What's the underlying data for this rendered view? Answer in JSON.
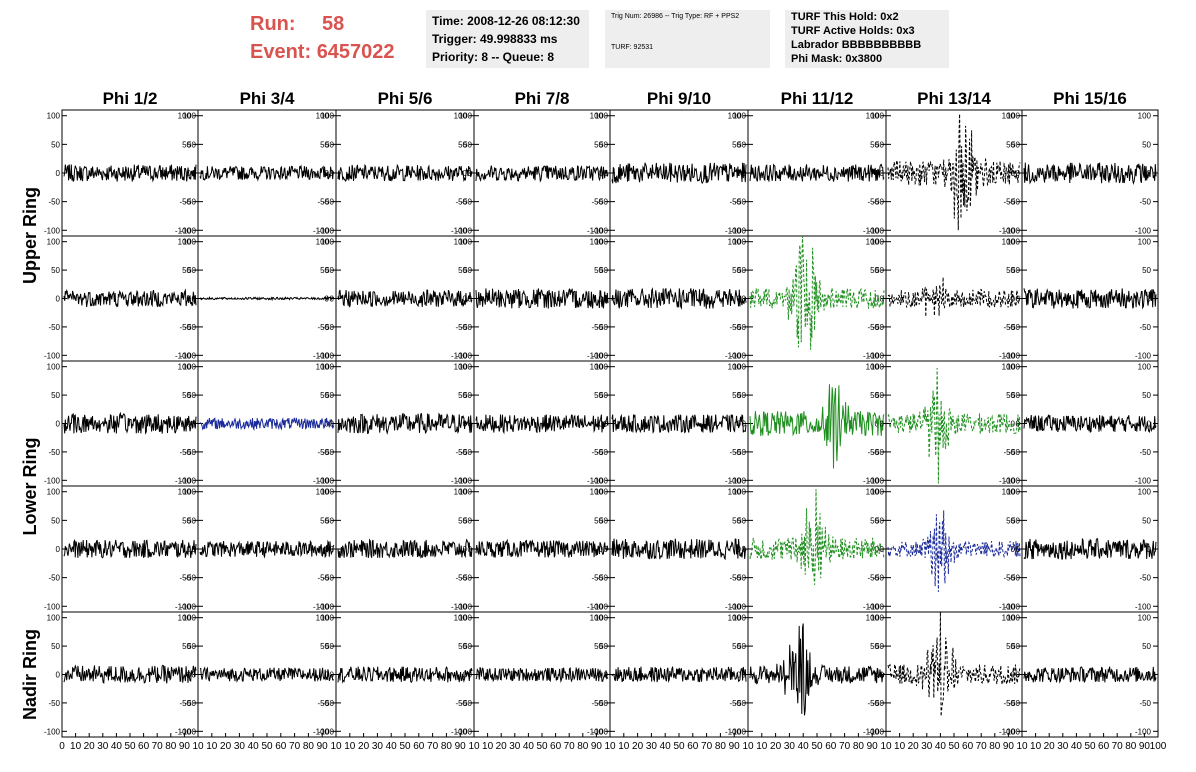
{
  "header": {
    "run_label": "Run:",
    "run_value": "58",
    "event_label": "Event:",
    "event_value": "6457022"
  },
  "info_time": {
    "time": "Time: 2008-12-26 08:12:30",
    "trigger": "Trigger: 49.998833 ms",
    "priority": "Priority: 8 -- Queue: 8"
  },
  "info_trig": {
    "trig": "Trig Num: 26986 -- Trig Type: RF + PPS2",
    "turf": "TURF: 92531"
  },
  "info_turf": {
    "hold": "TURF This Hold: 0x2",
    "active": "TURF Active Holds: 0x3",
    "labrador": "Labrador BBBBBBBBBB",
    "mask": "Phi Mask: 0x3800"
  },
  "colors": {
    "header_red": "#d9534f",
    "black": "#000000",
    "green": "#1f8f1f",
    "blue": "#1a2a9a",
    "panel_bg": "#eeeeee"
  },
  "chart_data": {
    "type": "line",
    "columns": [
      "Phi 1/2",
      "Phi 3/4",
      "Phi 5/6",
      "Phi 7/8",
      "Phi 9/10",
      "Phi 11/12",
      "Phi 13/14",
      "Phi 15/16"
    ],
    "ring_labels": [
      "Upper Ring",
      "Lower Ring",
      "Nadir Ring"
    ],
    "ring_rows": [
      [
        0,
        1
      ],
      [
        2,
        3
      ],
      [
        4,
        4
      ]
    ],
    "ylim": [
      -110,
      110
    ],
    "yticks": [
      100,
      50,
      0,
      -50,
      -100
    ],
    "xlim": [
      0,
      100
    ],
    "xtick_labels": [
      "0",
      "10",
      "20",
      "30",
      "40",
      "50",
      "60",
      "70",
      "80",
      "90",
      "10"
    ],
    "last_xtick_label": "100",
    "traces": [
      [
        {
          "color": "black",
          "style": "solid",
          "amp": 15,
          "burst": 0
        },
        {
          "color": "black",
          "style": "solid",
          "amp": 12,
          "burst": 0
        },
        {
          "color": "black",
          "style": "solid",
          "amp": 14,
          "burst": 0
        },
        {
          "color": "black",
          "style": "solid",
          "amp": 14,
          "burst": 0
        },
        {
          "color": "black",
          "style": "solid",
          "amp": 18,
          "burst": 0
        },
        {
          "color": "black",
          "style": "solid",
          "amp": 15,
          "burst": 0
        },
        {
          "color": "black",
          "style": "dashed",
          "amp": 22,
          "burst": 100
        },
        {
          "color": "black",
          "style": "solid",
          "amp": 18,
          "burst": 0
        }
      ],
      [
        {
          "color": "black",
          "style": "solid",
          "amp": 15,
          "burst": 0
        },
        {
          "color": "black",
          "style": "solid",
          "amp": 2,
          "burst": 0
        },
        {
          "color": "black",
          "style": "solid",
          "amp": 15,
          "burst": 0
        },
        {
          "color": "black",
          "style": "solid",
          "amp": 18,
          "burst": 0
        },
        {
          "color": "black",
          "style": "solid",
          "amp": 18,
          "burst": 0
        },
        {
          "color": "green",
          "style": "dashed",
          "amp": 18,
          "burst": 100
        },
        {
          "color": "black",
          "style": "dashed",
          "amp": 16,
          "burst": 30
        },
        {
          "color": "black",
          "style": "solid",
          "amp": 18,
          "burst": 0
        }
      ],
      [
        {
          "color": "black",
          "style": "solid",
          "amp": 18,
          "burst": 0
        },
        {
          "color": "blue",
          "style": "solid",
          "amp": 10,
          "burst": 0
        },
        {
          "color": "black",
          "style": "solid",
          "amp": 18,
          "burst": 0
        },
        {
          "color": "black",
          "style": "solid",
          "amp": 16,
          "burst": 0
        },
        {
          "color": "black",
          "style": "solid",
          "amp": 16,
          "burst": 0
        },
        {
          "color": "green",
          "style": "solid",
          "amp": 22,
          "burst": 50
        },
        {
          "color": "green",
          "style": "dashed",
          "amp": 18,
          "burst": 75
        },
        {
          "color": "black",
          "style": "solid",
          "amp": 15,
          "burst": 0
        }
      ],
      [
        {
          "color": "black",
          "style": "solid",
          "amp": 16,
          "burst": 0
        },
        {
          "color": "black",
          "style": "solid",
          "amp": 14,
          "burst": 0
        },
        {
          "color": "black",
          "style": "solid",
          "amp": 16,
          "burst": 0
        },
        {
          "color": "black",
          "style": "solid",
          "amp": 15,
          "burst": 0
        },
        {
          "color": "black",
          "style": "solid",
          "amp": 18,
          "burst": 0
        },
        {
          "color": "green",
          "style": "dashed",
          "amp": 20,
          "burst": 80
        },
        {
          "color": "blue",
          "style": "dashed",
          "amp": 14,
          "burst": 60
        },
        {
          "color": "black",
          "style": "solid",
          "amp": 18,
          "burst": 0
        }
      ],
      [
        {
          "color": "black",
          "style": "solid",
          "amp": 16,
          "burst": 0
        },
        {
          "color": "black",
          "style": "solid",
          "amp": 12,
          "burst": 0
        },
        {
          "color": "black",
          "style": "solid",
          "amp": 14,
          "burst": 0
        },
        {
          "color": "black",
          "style": "solid",
          "amp": 12,
          "burst": 0
        },
        {
          "color": "black",
          "style": "solid",
          "amp": 14,
          "burst": 0
        },
        {
          "color": "black",
          "style": "solid",
          "amp": 16,
          "burst": 70
        },
        {
          "color": "black",
          "style": "dashed",
          "amp": 18,
          "burst": 90
        },
        {
          "color": "black",
          "style": "solid",
          "amp": 14,
          "burst": 0
        }
      ]
    ]
  }
}
